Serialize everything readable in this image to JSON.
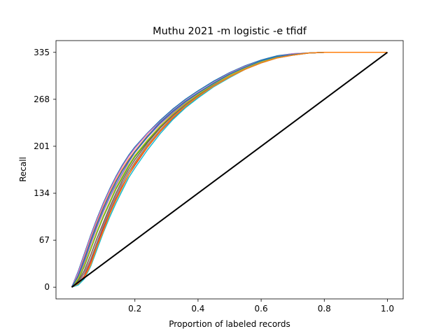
{
  "chart_data": {
    "type": "line",
    "title": "Muthu 2021 -m logistic -e tfidf",
    "xlabel": "Proportion of labeled records",
    "ylabel": "Recall",
    "xlim": [
      -0.05,
      1.05
    ],
    "ylim": [
      -16.75,
      351.75
    ],
    "x_ticks": [
      {
        "value": 0.2,
        "label": "0.2"
      },
      {
        "value": 0.4,
        "label": "0.4"
      },
      {
        "value": 0.6,
        "label": "0.6"
      },
      {
        "value": 0.8,
        "label": "0.8"
      },
      {
        "value": 1.0,
        "label": "1.0"
      }
    ],
    "y_ticks": [
      {
        "value": 0,
        "label": "0"
      },
      {
        "value": 67,
        "label": "67"
      },
      {
        "value": 134,
        "label": "134"
      },
      {
        "value": 201,
        "label": "201"
      },
      {
        "value": 268,
        "label": "268"
      },
      {
        "value": 335,
        "label": "335"
      }
    ],
    "grid": false,
    "colors": [
      "#1f77b4",
      "#ff7f0e",
      "#2ca02c",
      "#d62728",
      "#9467bd",
      "#8c564b",
      "#e377c2",
      "#7f7f7f",
      "#bcbd22",
      "#17becf"
    ],
    "baseline": {
      "color": "#000000",
      "x": [
        0,
        1.0
      ],
      "values": [
        0,
        335
      ]
    },
    "series_x": [
      0,
      0.02,
      0.04,
      0.06,
      0.08,
      0.1,
      0.12,
      0.14,
      0.16,
      0.18,
      0.2,
      0.24,
      0.28,
      0.32,
      0.36,
      0.4,
      0.45,
      0.5,
      0.55,
      0.6,
      0.65,
      0.7,
      0.75,
      0.8,
      0.9,
      1.0
    ],
    "series": [
      {
        "values": [
          0,
          22,
          48,
          74,
          98,
          120,
          140,
          158,
          174,
          188,
          200,
          220,
          238,
          254,
          268,
          280,
          294,
          306,
          316,
          324,
          330,
          333,
          334,
          335,
          335,
          335
        ]
      },
      {
        "values": [
          0,
          18,
          42,
          68,
          92,
          114,
          134,
          152,
          168,
          182,
          194,
          216,
          234,
          250,
          264,
          276,
          291,
          303,
          314,
          322,
          329,
          332,
          334,
          335,
          335,
          335
        ]
      },
      {
        "values": [
          0,
          10,
          30,
          54,
          78,
          100,
          120,
          140,
          156,
          172,
          186,
          208,
          228,
          246,
          261,
          274,
          289,
          302,
          313,
          321,
          328,
          332,
          334,
          335,
          335,
          335
        ]
      },
      {
        "values": [
          0,
          4,
          16,
          36,
          60,
          84,
          106,
          126,
          144,
          160,
          174,
          200,
          222,
          241,
          257,
          271,
          287,
          300,
          311,
          320,
          327,
          331,
          334,
          335,
          335,
          335
        ]
      },
      {
        "values": [
          0,
          14,
          36,
          62,
          86,
          108,
          128,
          146,
          162,
          178,
          192,
          214,
          233,
          249,
          263,
          276,
          290,
          303,
          313,
          322,
          328,
          332,
          334,
          335,
          335,
          335
        ]
      },
      {
        "values": [
          0,
          8,
          24,
          46,
          70,
          92,
          114,
          134,
          152,
          168,
          182,
          206,
          227,
          245,
          260,
          273,
          288,
          301,
          312,
          321,
          328,
          332,
          334,
          335,
          335,
          335
        ]
      },
      {
        "values": [
          0,
          20,
          46,
          72,
          96,
          118,
          138,
          156,
          172,
          186,
          198,
          219,
          236,
          252,
          266,
          278,
          292,
          305,
          315,
          323,
          329,
          333,
          334,
          335,
          335,
          335
        ]
      },
      {
        "values": [
          0,
          6,
          20,
          40,
          64,
          88,
          110,
          130,
          148,
          164,
          178,
          203,
          224,
          243,
          259,
          272,
          288,
          301,
          312,
          321,
          327,
          331,
          334,
          335,
          335,
          335
        ]
      },
      {
        "values": [
          0,
          12,
          32,
          56,
          80,
          102,
          122,
          142,
          158,
          174,
          188,
          210,
          230,
          247,
          262,
          275,
          290,
          302,
          313,
          322,
          328,
          332,
          334,
          335,
          335,
          335
        ]
      },
      {
        "values": [
          0,
          3,
          12,
          30,
          54,
          78,
          100,
          120,
          138,
          156,
          170,
          196,
          219,
          239,
          256,
          270,
          286,
          299,
          311,
          320,
          327,
          331,
          334,
          335,
          335,
          335
        ]
      },
      {
        "values": [
          0,
          16,
          40,
          66,
          90,
          112,
          132,
          150,
          166,
          180,
          193,
          215,
          235,
          251,
          265,
          277,
          291,
          304,
          314,
          323,
          329,
          332,
          334,
          335,
          335,
          335
        ]
      },
      {
        "values": [
          0,
          5,
          14,
          32,
          58,
          80,
          104,
          124,
          142,
          160,
          176,
          201,
          223,
          242,
          258,
          272,
          287,
          300,
          311,
          320,
          327,
          331,
          334,
          335,
          335,
          335
        ]
      }
    ]
  }
}
